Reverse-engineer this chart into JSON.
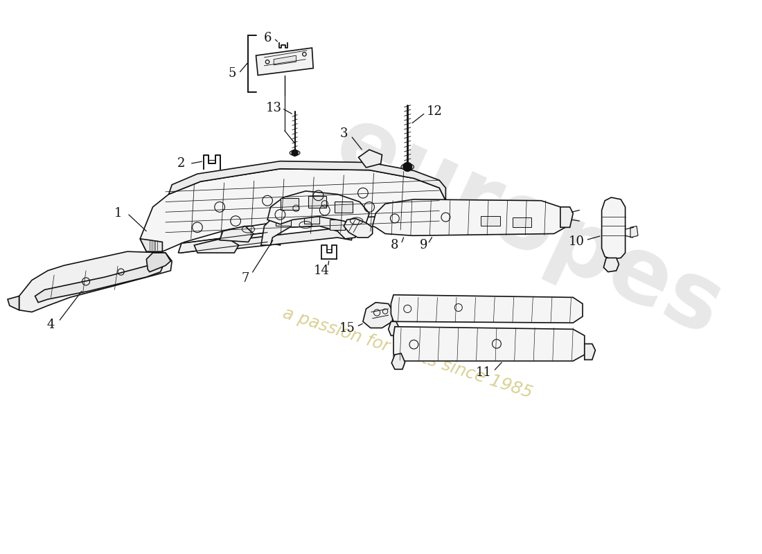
{
  "background_color": "#ffffff",
  "line_color": "#111111",
  "watermark1_color": "#cccccc",
  "watermark2_color": "#d4cc88",
  "label_fontsize": 11,
  "fig_w": 11.0,
  "fig_h": 8.0,
  "dpi": 100
}
